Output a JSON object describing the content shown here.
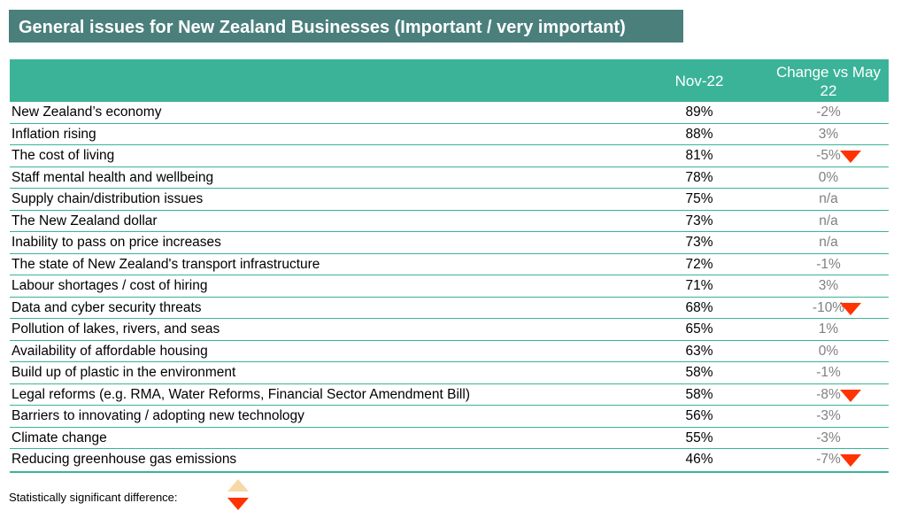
{
  "title": "General issues for New Zealand Businesses (Important / very important)",
  "colors": {
    "title_bg": "#4a7f7c",
    "header_bg": "#3bb398",
    "down_arrow": "#ff3300",
    "up_arrow": "#f7d9a8",
    "change_text": "#808080"
  },
  "chart_data": {
    "type": "table",
    "columns": [
      "",
      "Nov-22",
      "Change vs May 22"
    ],
    "rows": [
      {
        "issue": "New Zealand’s economy",
        "nov22": "89%",
        "change": "-2%",
        "significant": ""
      },
      {
        "issue": "Inflation rising",
        "nov22": "88%",
        "change": "3%",
        "significant": ""
      },
      {
        "issue": "The cost of living",
        "nov22": "81%",
        "change": "-5%",
        "significant": "down"
      },
      {
        "issue": "Staff mental health and wellbeing",
        "nov22": "78%",
        "change": "0%",
        "significant": ""
      },
      {
        "issue": "Supply chain/distribution issues",
        "nov22": "75%",
        "change": "n/a",
        "significant": ""
      },
      {
        "issue": "The New Zealand dollar",
        "nov22": "73%",
        "change": "n/a",
        "significant": ""
      },
      {
        "issue": "Inability to pass on price increases",
        "nov22": "73%",
        "change": "n/a",
        "significant": ""
      },
      {
        "issue": "The state of New Zealand's transport infrastructure",
        "nov22": "72%",
        "change": "-1%",
        "significant": ""
      },
      {
        "issue": "Labour shortages / cost of hiring",
        "nov22": "71%",
        "change": "3%",
        "significant": ""
      },
      {
        "issue": "Data and cyber security threats",
        "nov22": "68%",
        "change": "-10%",
        "significant": "down"
      },
      {
        "issue": "Pollution of lakes, rivers, and seas",
        "nov22": "65%",
        "change": "1%",
        "significant": ""
      },
      {
        "issue": "Availability of affordable housing",
        "nov22": "63%",
        "change": "0%",
        "significant": ""
      },
      {
        "issue": "Build up of plastic in the environment",
        "nov22": "58%",
        "change": "-1%",
        "significant": ""
      },
      {
        "issue": "Legal reforms (e.g. RMA, Water Reforms, Financial Sector Amendment Bill)",
        "nov22": "58%",
        "change": "-8%",
        "significant": "down"
      },
      {
        "issue": "Barriers to innovating / adopting new technology",
        "nov22": "56%",
        "change": "-3%",
        "significant": ""
      },
      {
        "issue": "Climate change",
        "nov22": "55%",
        "change": "-3%",
        "significant": ""
      },
      {
        "issue": "Reducing greenhouse gas emissions",
        "nov22": "46%",
        "change": "-7%",
        "significant": "down"
      }
    ]
  },
  "legend": {
    "label": "Statistically significant difference:",
    "up_icon": "triangle-up-icon",
    "down_icon": "triangle-down-icon"
  }
}
